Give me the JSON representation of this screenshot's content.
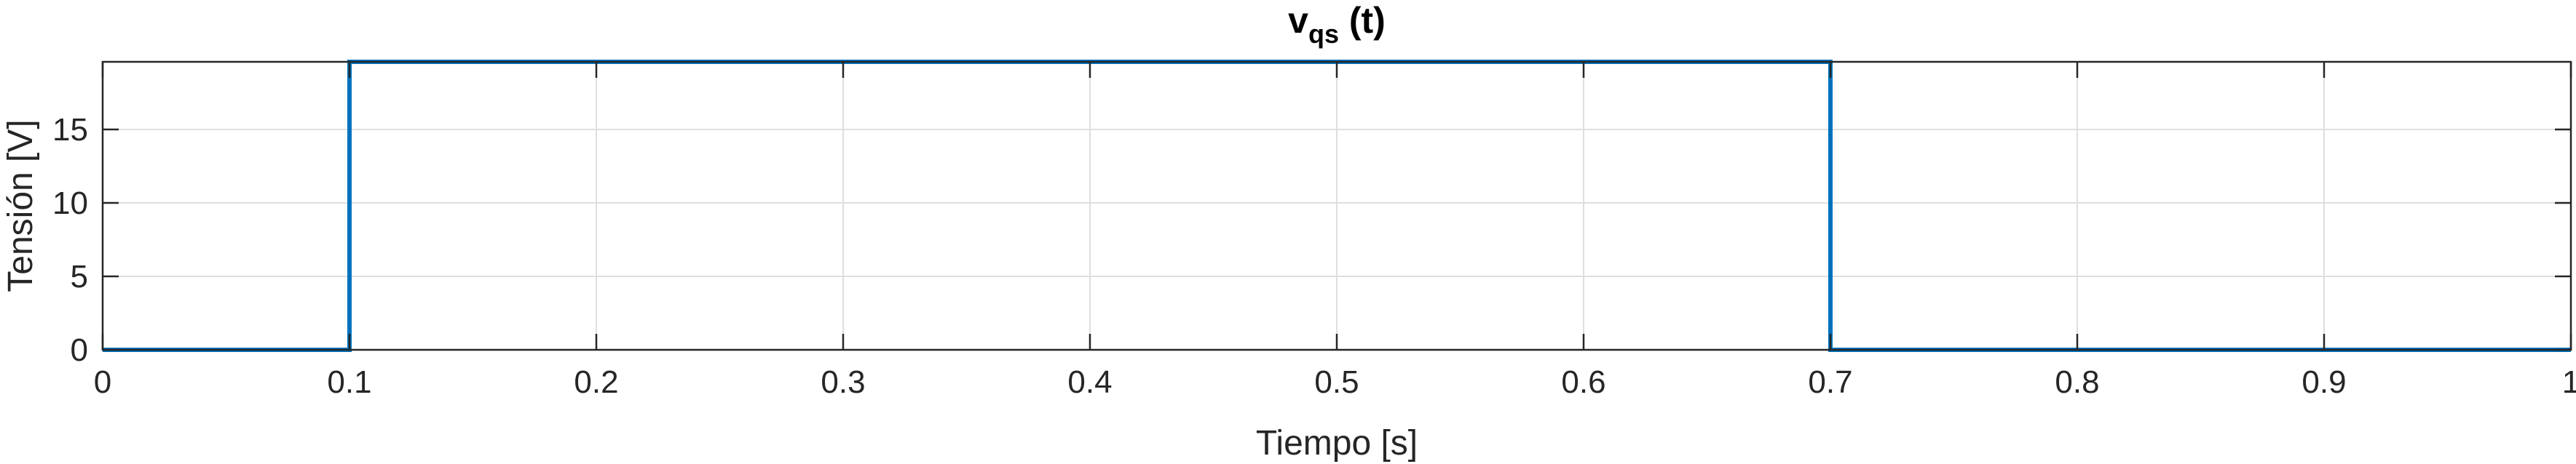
{
  "chart_data": {
    "type": "line",
    "title_main": "v",
    "title_subscript": "qs",
    "title_suffix": " (t)",
    "xlabel": "Tiempo [s]",
    "ylabel": "Tensión [V]",
    "xlim": [
      0,
      1
    ],
    "ylim": [
      0,
      19.6
    ],
    "xticks": [
      0,
      0.1,
      0.2,
      0.3,
      0.4,
      0.5,
      0.6,
      0.7,
      0.8,
      0.9,
      1
    ],
    "xtick_labels": [
      "0",
      "0.1",
      "0.2",
      "0.3",
      "0.4",
      "0.5",
      "0.6",
      "0.7",
      "0.8",
      "0.9",
      "1"
    ],
    "yticks": [
      0,
      5,
      10,
      15
    ],
    "ytick_labels": [
      "0",
      "5",
      "10",
      "15"
    ],
    "grid": true,
    "series": [
      {
        "color": "#0072BD",
        "x": [
          0,
          0.1,
          0.1,
          0.7,
          0.7,
          1
        ],
        "y": [
          0,
          0,
          19.6,
          19.6,
          0,
          0
        ]
      }
    ]
  }
}
